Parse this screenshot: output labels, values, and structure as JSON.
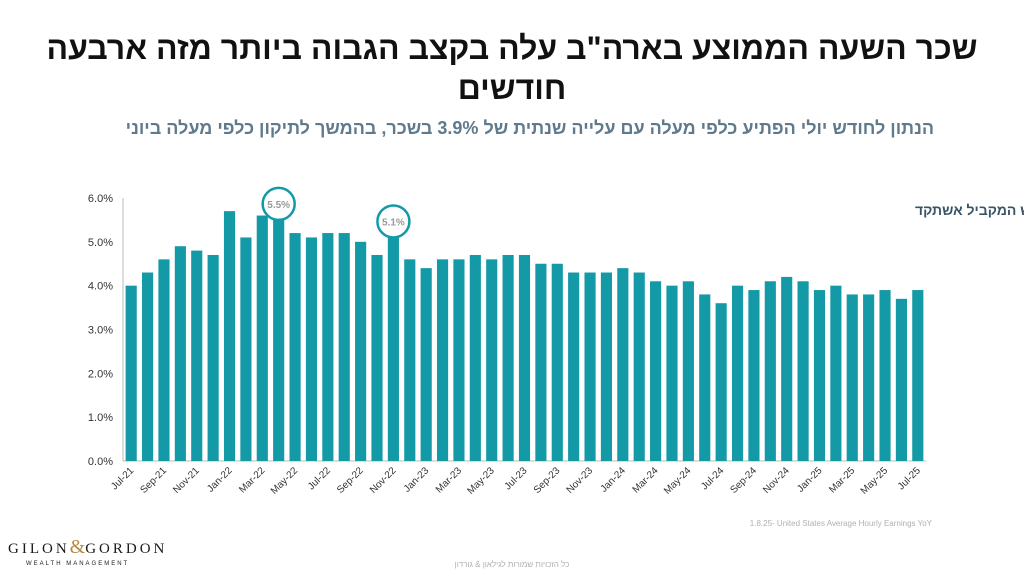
{
  "title": "שכר השעה הממוצע בארה\"ב עלה בקצב הגבוה ביותר מזה ארבעה חודשים",
  "subtitle": "הנתון לחודש יולי הפתיע כלפי מעלה עם עלייה שנתית של 3.9% בשכר, בהמשך לתיקון כלפי מעלה ביוני",
  "source": "1.8.25- United States Average Hourly Earnings YoY",
  "footer": "כל הזכויות שמורות לגילאון & גורדון",
  "logo": {
    "left": "GILON",
    "amp": "&",
    "right": "GORDON",
    "sub": "WEALTH MANAGEMENT"
  },
  "colors": {
    "bar": "#139aa6",
    "highlight_ring": "#139aa6",
    "axis_text": "#333333"
  },
  "chart_data": {
    "type": "bar",
    "title": "השינוי בשכר השעתי - ביחס לחודש המקביל אשתקד",
    "categories": [
      "Jul-21",
      "Aug-21",
      "Sep-21",
      "Oct-21",
      "Nov-21",
      "Dec-21",
      "Jan-22",
      "Feb-22",
      "Mar-22",
      "Apr-22",
      "May-22",
      "Jun-22",
      "Jul-22",
      "Aug-22",
      "Sep-22",
      "Oct-22",
      "Nov-22",
      "Dec-22",
      "Jan-23",
      "Feb-23",
      "Mar-23",
      "Apr-23",
      "May-23",
      "Jun-23",
      "Jul-23",
      "Aug-23",
      "Sep-23",
      "Oct-23",
      "Nov-23",
      "Dec-23",
      "Jan-24",
      "Feb-24",
      "Mar-24",
      "Apr-24",
      "May-24",
      "Jun-24",
      "Jul-24",
      "Aug-24",
      "Sep-24",
      "Oct-24",
      "Nov-24",
      "Dec-24",
      "Jan-25",
      "Feb-25",
      "Mar-25",
      "Apr-25",
      "May-25",
      "Jun-25",
      "Jul-25"
    ],
    "tick_labels": [
      "Jul-21",
      "Sep-21",
      "Nov-21",
      "Jan-22",
      "Mar-22",
      "May-22",
      "Jul-22",
      "Sep-22",
      "Nov-22",
      "Jan-23",
      "Mar-23",
      "May-23",
      "Jul-23",
      "Sep-23",
      "Nov-23",
      "Jan-24",
      "Mar-24",
      "May-24",
      "Jul-24",
      "Sep-24",
      "Nov-24",
      "Jan-25",
      "Mar-25",
      "May-25",
      "Jul-25"
    ],
    "values": [
      4.0,
      4.3,
      4.6,
      4.9,
      4.8,
      4.7,
      5.7,
      5.1,
      5.6,
      5.5,
      5.2,
      5.1,
      5.2,
      5.2,
      5.0,
      4.7,
      5.1,
      4.6,
      4.4,
      4.6,
      4.6,
      4.7,
      4.6,
      4.7,
      4.7,
      4.5,
      4.5,
      4.3,
      4.3,
      4.3,
      4.4,
      4.3,
      4.1,
      4.0,
      4.1,
      3.8,
      3.6,
      4.0,
      3.9,
      4.1,
      4.2,
      4.1,
      3.9,
      4.0,
      3.8,
      3.8,
      3.9,
      3.7,
      3.9
    ],
    "ylim": [
      0,
      6
    ],
    "yticks": [
      "0.0%",
      "1.0%",
      "2.0%",
      "3.0%",
      "4.0%",
      "5.0%",
      "6.0%"
    ],
    "grid": false,
    "annotations": [
      {
        "category": "Apr-22",
        "label": "5.5%"
      },
      {
        "category": "Nov-22",
        "label": "5.1%"
      }
    ]
  }
}
